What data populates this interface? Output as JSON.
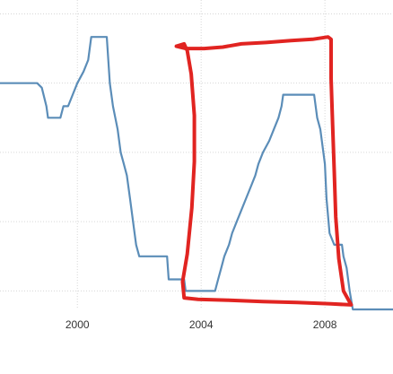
{
  "chart_data": {
    "type": "line",
    "title": "",
    "xlabel": "",
    "ylabel": "",
    "xlim": [
      1997.5,
      2010.2
    ],
    "ylim": [
      0.6,
      7.3
    ],
    "grid": true,
    "x_ticks": [
      {
        "value": 2000,
        "label": "2000"
      },
      {
        "value": 2004,
        "label": "2004"
      },
      {
        "value": 2008,
        "label": "2008"
      }
    ],
    "x_grid": [
      2000,
      2004,
      2008
    ],
    "y_grid": [
      1,
      2.5,
      4,
      5.5,
      7
    ],
    "series": [
      {
        "color": "#5b8db8",
        "points": [
          [
            1997.5,
            5.5
          ],
          [
            1998.7,
            5.5
          ],
          [
            1998.85,
            5.4
          ],
          [
            1999.0,
            5.0
          ],
          [
            1999.05,
            4.75
          ],
          [
            1999.45,
            4.75
          ],
          [
            1999.55,
            5.0
          ],
          [
            1999.7,
            5.0
          ],
          [
            1999.85,
            5.25
          ],
          [
            2000.0,
            5.5
          ],
          [
            2000.2,
            5.75
          ],
          [
            2000.35,
            6.0
          ],
          [
            2000.45,
            6.5
          ],
          [
            2000.95,
            6.5
          ],
          [
            2001.0,
            6.0
          ],
          [
            2001.05,
            5.5
          ],
          [
            2001.15,
            5.0
          ],
          [
            2001.3,
            4.5
          ],
          [
            2001.4,
            4.0
          ],
          [
            2001.5,
            3.75
          ],
          [
            2001.6,
            3.5
          ],
          [
            2001.7,
            3.0
          ],
          [
            2001.8,
            2.5
          ],
          [
            2001.9,
            2.0
          ],
          [
            2002.0,
            1.75
          ],
          [
            2002.9,
            1.75
          ],
          [
            2002.95,
            1.25
          ],
          [
            2003.45,
            1.25
          ],
          [
            2003.5,
            1.0
          ],
          [
            2004.45,
            1.0
          ],
          [
            2004.55,
            1.25
          ],
          [
            2004.65,
            1.5
          ],
          [
            2004.75,
            1.75
          ],
          [
            2004.9,
            2.0
          ],
          [
            2005.0,
            2.25
          ],
          [
            2005.15,
            2.5
          ],
          [
            2005.3,
            2.75
          ],
          [
            2005.45,
            3.0
          ],
          [
            2005.6,
            3.25
          ],
          [
            2005.75,
            3.5
          ],
          [
            2005.85,
            3.75
          ],
          [
            2006.0,
            4.0
          ],
          [
            2006.2,
            4.25
          ],
          [
            2006.35,
            4.5
          ],
          [
            2006.5,
            4.75
          ],
          [
            2006.6,
            5.0
          ],
          [
            2006.65,
            5.25
          ],
          [
            2007.65,
            5.25
          ],
          [
            2007.75,
            4.75
          ],
          [
            2007.85,
            4.5
          ],
          [
            2008.0,
            3.75
          ],
          [
            2008.05,
            3.0
          ],
          [
            2008.15,
            2.25
          ],
          [
            2008.3,
            2.0
          ],
          [
            2008.55,
            2.0
          ],
          [
            2008.6,
            1.75
          ],
          [
            2008.7,
            1.5
          ],
          [
            2008.8,
            1.0
          ],
          [
            2008.9,
            0.6
          ],
          [
            2010.2,
            0.6
          ]
        ]
      }
    ],
    "annotations": [
      {
        "type": "hand-drawn-box",
        "color": "#e12421",
        "points": [
          [
            2003.2,
            6.3
          ],
          [
            2003.5,
            6.25
          ],
          [
            2004.1,
            6.25
          ],
          [
            2004.7,
            6.28
          ],
          [
            2005.3,
            6.35
          ],
          [
            2006.1,
            6.38
          ],
          [
            2006.9,
            6.42
          ],
          [
            2007.6,
            6.45
          ],
          [
            2008.1,
            6.5
          ],
          [
            2008.2,
            6.45
          ],
          [
            2008.2,
            5.6
          ],
          [
            2008.25,
            4.6
          ],
          [
            2008.3,
            3.6
          ],
          [
            2008.35,
            2.6
          ],
          [
            2008.45,
            1.7
          ],
          [
            2008.6,
            1.0
          ],
          [
            2008.85,
            0.7
          ],
          [
            2008.2,
            0.72
          ],
          [
            2007.1,
            0.75
          ],
          [
            2006.0,
            0.77
          ],
          [
            2004.9,
            0.8
          ],
          [
            2003.9,
            0.82
          ],
          [
            2003.45,
            0.85
          ],
          [
            2003.4,
            1.2
          ],
          [
            2003.55,
            1.8
          ],
          [
            2003.7,
            2.8
          ],
          [
            2003.78,
            3.8
          ],
          [
            2003.78,
            4.8
          ],
          [
            2003.68,
            5.7
          ],
          [
            2003.55,
            6.2
          ],
          [
            2003.45,
            6.35
          ],
          [
            2003.2,
            6.3
          ]
        ]
      }
    ]
  }
}
